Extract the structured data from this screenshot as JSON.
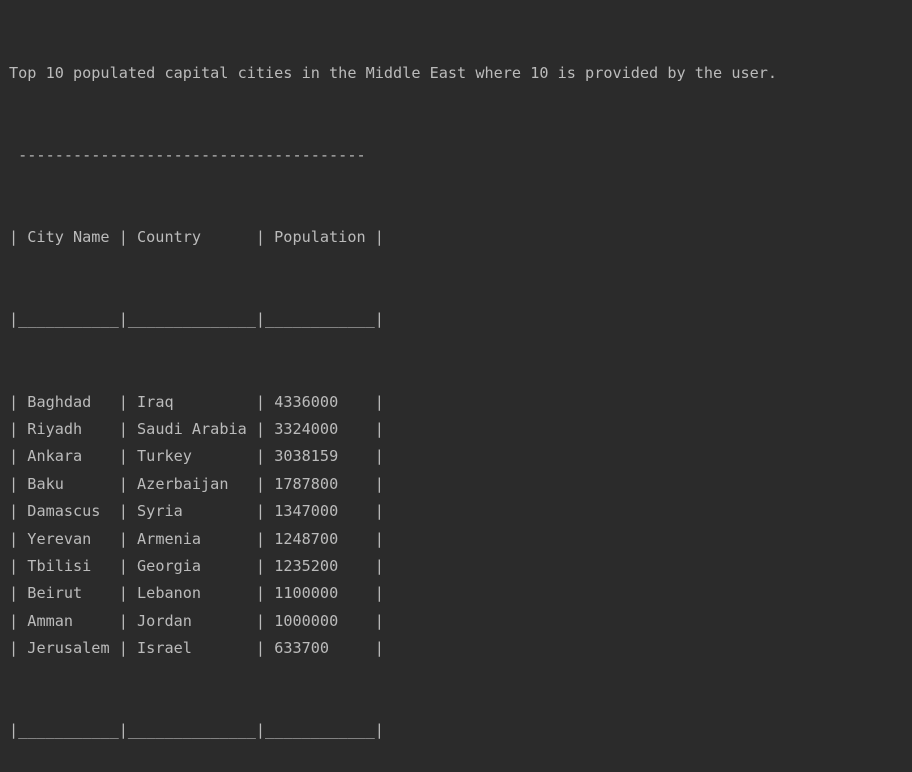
{
  "console": {
    "intro": "Top 10 populated capital cities in the Middle East where 10 is provided by the user.",
    "table": {
      "top_border": " --------------------------------------",
      "header": "| City Name | Country      | Population |",
      "header_separator": "|___________|______________|____________|",
      "rows": [
        {
          "city": "Baghdad",
          "country": "Iraq",
          "population": "4336000"
        },
        {
          "city": "Riyadh",
          "country": "Saudi Arabia",
          "population": "3324000"
        },
        {
          "city": "Ankara",
          "country": "Turkey",
          "population": "3038159"
        },
        {
          "city": "Baku",
          "country": "Azerbaijan",
          "population": "1787800"
        },
        {
          "city": "Damascus",
          "country": "Syria",
          "population": "1347000"
        },
        {
          "city": "Yerevan",
          "country": "Armenia",
          "population": "1248700"
        },
        {
          "city": "Tbilisi",
          "country": "Georgia",
          "population": "1235200"
        },
        {
          "city": "Beirut",
          "country": "Lebanon",
          "population": "1100000"
        },
        {
          "city": "Amman",
          "country": "Jordan",
          "population": "1000000"
        },
        {
          "city": "Jerusalem",
          "country": "Israel",
          "population": "633700"
        }
      ],
      "bottom_border": "|___________|______________|____________|"
    }
  }
}
